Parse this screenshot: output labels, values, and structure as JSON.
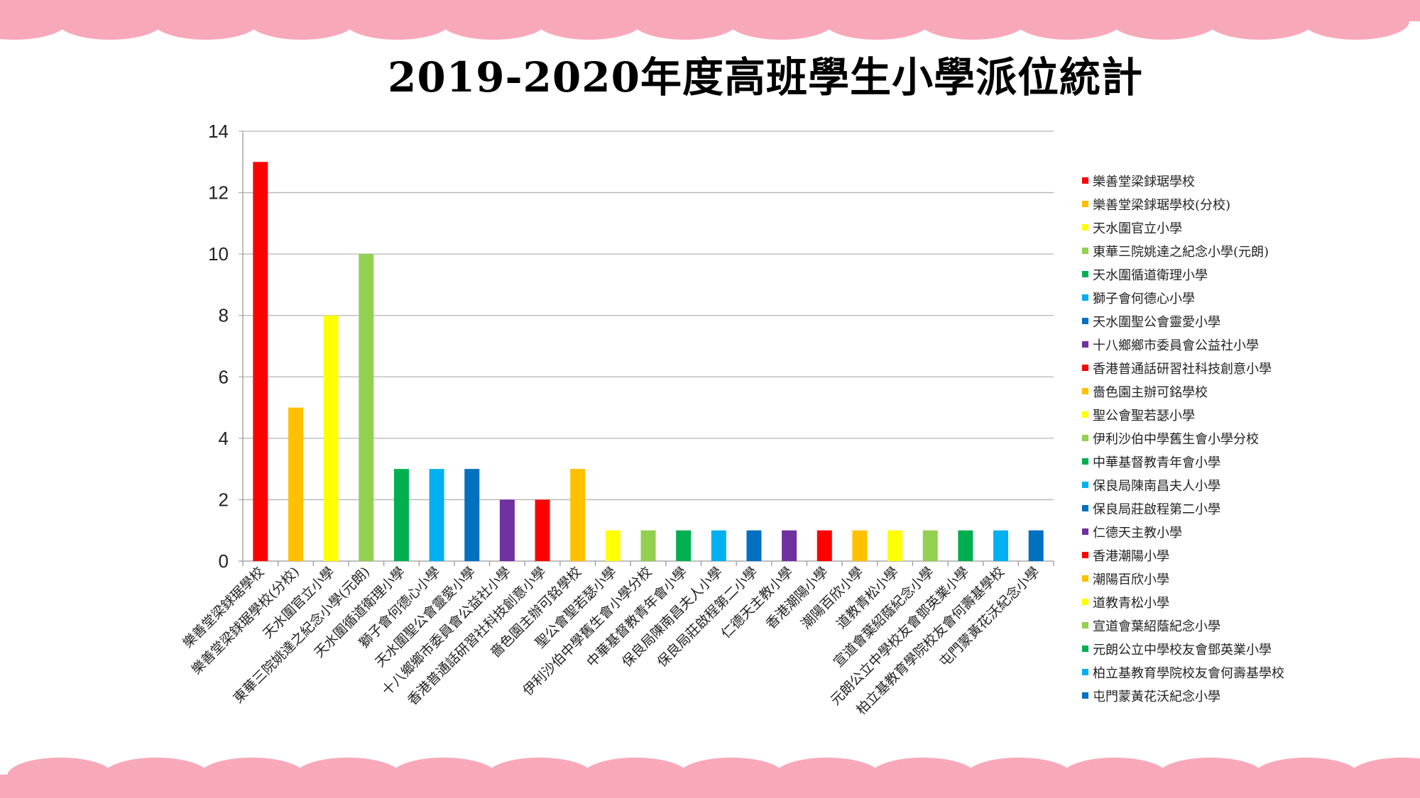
{
  "colors": {
    "pink": "#F7A9BA"
  },
  "chart_data": {
    "type": "bar",
    "title": "2019-2020年度高班學生小學派位統計",
    "xlabel": "",
    "ylabel": "",
    "ylim": [
      0,
      14
    ],
    "yticks": [
      0,
      2,
      4,
      6,
      8,
      10,
      12,
      14
    ],
    "grid": true,
    "legend_position": "right",
    "categories": [
      "樂善堂梁銶琚學校",
      "樂善堂梁銶琚學校(分校)",
      "天水圍官立小學",
      "東華三院姚達之紀念小學(元朗)",
      "天水圍循道衛理小學",
      "獅子會何德心小學",
      "天水圍聖公會靈愛小學",
      "十八鄉鄉市委員會公益社小學",
      "香港普通話研習社科技創意小學",
      "嗇色園主辦可銘學校",
      "聖公會聖若瑟小學",
      "伊利沙伯中學舊生會小學分校",
      "中華基督教青年會小學",
      "保良局陳南昌夫人小學",
      "保良局莊啟程第二小學",
      "仁德天主教小學",
      "香港潮陽小學",
      "潮陽百欣小學",
      "道教青松小學",
      "宣道會葉紹蔭紀念小學",
      "元朗公立中學校友會鄧英業小學",
      "柏立基教育學院校友會何壽基學校",
      "屯門蒙黃花沃紀念小學"
    ],
    "values": [
      13,
      5,
      8,
      10,
      3,
      3,
      3,
      2,
      2,
      3,
      1,
      1,
      1,
      1,
      1,
      1,
      1,
      1,
      1,
      1,
      1,
      1,
      1
    ],
    "bar_colors": [
      "#FF0000",
      "#FFC000",
      "#FFFF00",
      "#92D050",
      "#00B050",
      "#00B0F0",
      "#0070C0",
      "#7030A0",
      "#FF0000",
      "#FFC000",
      "#FFFF00",
      "#92D050",
      "#00B050",
      "#00B0F0",
      "#0070C0",
      "#7030A0",
      "#FF0000",
      "#FFC000",
      "#FFFF00",
      "#92D050",
      "#00B050",
      "#00B0F0",
      "#0070C0"
    ]
  }
}
